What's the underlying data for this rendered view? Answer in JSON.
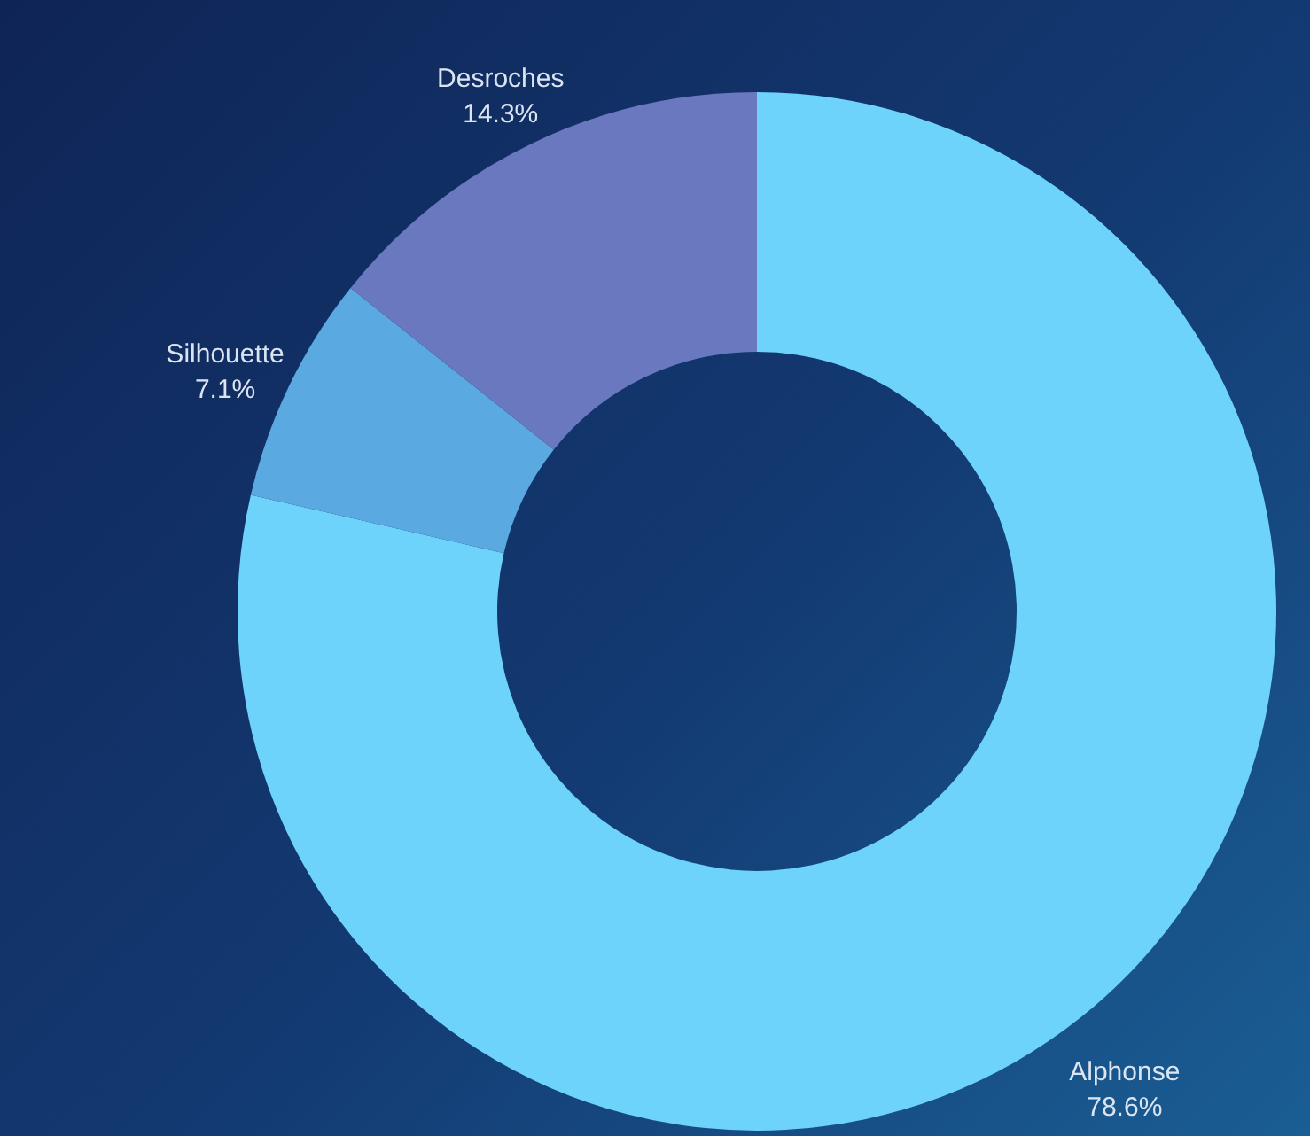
{
  "chart_data": {
    "type": "donut",
    "categories": [
      "Alphonse",
      "Silhouette",
      "Desroches"
    ],
    "values": [
      78.6,
      7.1,
      14.3
    ],
    "colors": [
      "#6dd3fb",
      "#5aa9e0",
      "#6a78bf"
    ],
    "value_labels": [
      "78.6%",
      "7.1%",
      "14.3%"
    ],
    "legend": false
  }
}
